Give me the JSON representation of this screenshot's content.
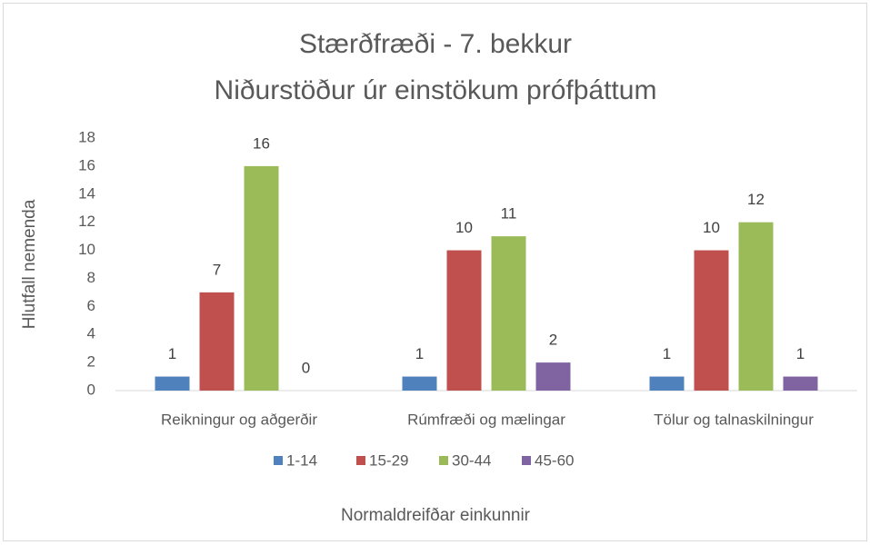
{
  "chart_data": {
    "type": "bar",
    "title": "Stærðfræði - 7. bekkur",
    "subtitle": "Niðurstöður úr einstökum prófþáttum",
    "y_label": "Hlutfall nemenda",
    "x_label": "Normaldreifðar einkunnir",
    "categories": [
      "Reikningur og aðgerðir",
      "Rúmfræði og mælingar",
      "Tölur og talnaskilningur"
    ],
    "series": [
      {
        "name": "1-14",
        "color": "#4f81bd",
        "values": [
          1,
          1,
          1
        ]
      },
      {
        "name": "15-29",
        "color": "#c0504d",
        "values": [
          7,
          10,
          10
        ]
      },
      {
        "name": "30-44",
        "color": "#9bbb59",
        "values": [
          16,
          11,
          12
        ]
      },
      {
        "name": "45-60",
        "color": "#8064a2",
        "values": [
          0,
          2,
          1
        ]
      }
    ],
    "ylim": [
      0,
      18
    ],
    "yticks": [
      0,
      2,
      4,
      6,
      8,
      10,
      12,
      14,
      16,
      18
    ],
    "grid": false,
    "legend": "bottom"
  }
}
